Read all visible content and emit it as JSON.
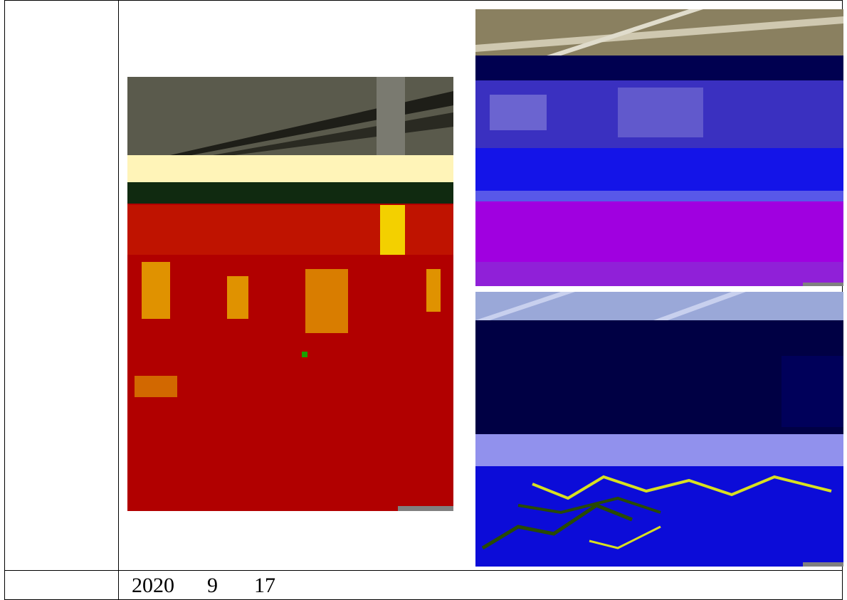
{
  "date": {
    "year": "2020",
    "month": "9",
    "day": "17"
  },
  "photos": [
    {
      "name": "photo-left",
      "palette": [
        "#b10000",
        "#f3d000",
        "#102a10",
        "#fff4b8",
        "#5a5a4c"
      ]
    },
    {
      "name": "photo-top-right",
      "palette": [
        "#1010e0",
        "#a000e0",
        "#000050",
        "#ffffff",
        "#8a8060"
      ]
    },
    {
      "name": "photo-bottom-right",
      "palette": [
        "#0c0cd8",
        "#000044",
        "#ffffff",
        "#284a00",
        "#d8e020"
      ]
    }
  ]
}
